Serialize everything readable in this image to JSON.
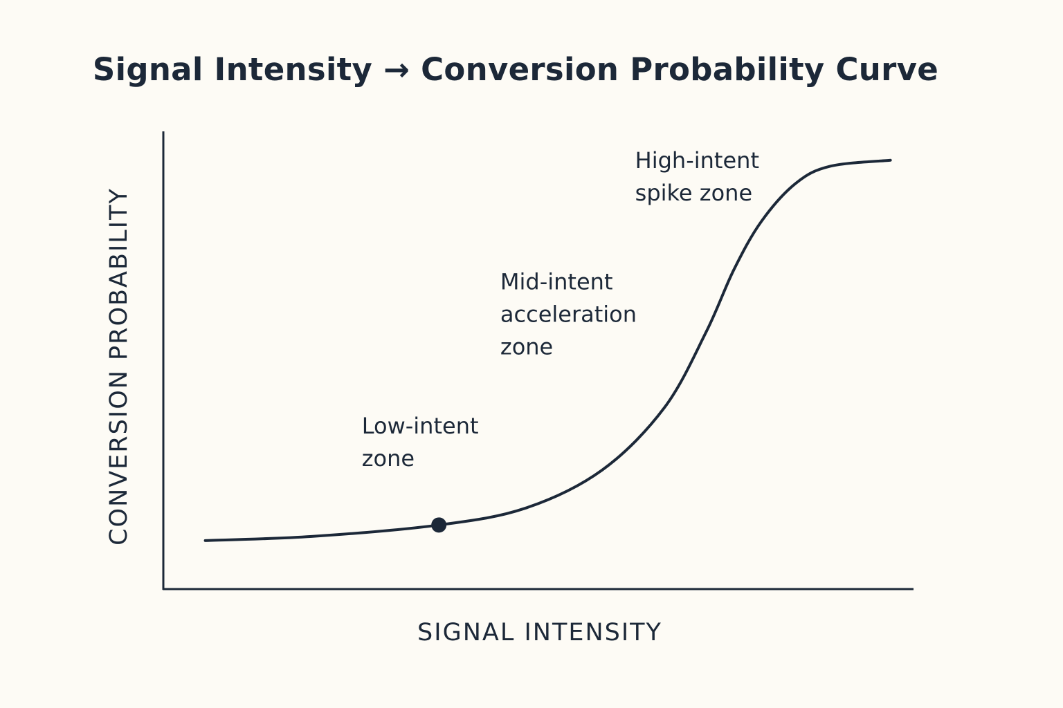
{
  "chart_data": {
    "type": "line",
    "title": "Signal Intensity → Conversion Probability Curve",
    "xlabel": "SIGNAL INTENSITY",
    "ylabel": "CONVERSION PROBABILITY",
    "xlim": [
      0,
      100
    ],
    "ylim": [
      0,
      100
    ],
    "grid": false,
    "ticks_shown": false,
    "color": "#1c2838",
    "background": "#fdfbf5",
    "series": [
      {
        "x": [
          5.6,
          19.8,
          36.8,
          48.4,
          58.6,
          66.9,
          72.5,
          76.2,
          79.9,
          84.5,
          89.1,
          97.1
        ],
        "y": [
          10.6,
          11.5,
          14.0,
          17.7,
          26.0,
          39.6,
          56.2,
          69.8,
          80.4,
          88.7,
          92.4,
          93.7
        ]
      }
    ],
    "marked_point": {
      "x": 36.8,
      "y": 14.0
    },
    "annotations": [
      {
        "lines": [
          "Low-intent",
          "zone"
        ],
        "x": 26.5,
        "y": 34
      },
      {
        "lines": [
          "Mid-intent",
          "acceleration",
          "zone"
        ],
        "x": 45,
        "y": 65.5
      },
      {
        "lines": [
          "High-intent",
          "spike zone"
        ],
        "x": 63,
        "y": 92
      }
    ]
  }
}
